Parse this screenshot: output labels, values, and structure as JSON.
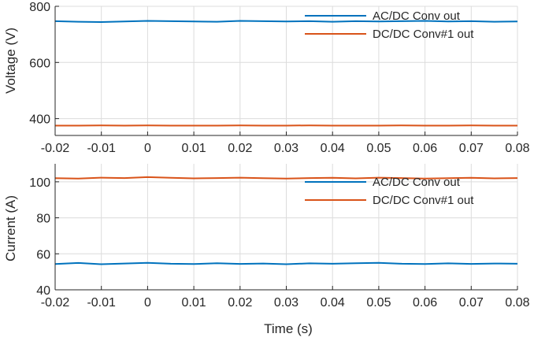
{
  "colors": {
    "series_blue": "#0072BD",
    "series_orange": "#D95319",
    "grid": "#DCDCDC",
    "axis": "#262626",
    "background": "#FFFFFF"
  },
  "chart_data": [
    {
      "type": "line",
      "title": "",
      "xlabel": "",
      "ylabel": "Voltage (V)",
      "xlim": [
        -0.02,
        0.08
      ],
      "ylim": [
        340,
        800
      ],
      "x_ticks": [
        -0.02,
        -0.01,
        0,
        0.01,
        0.02,
        0.03,
        0.04,
        0.05,
        0.06,
        0.07,
        0.08
      ],
      "x_tick_labels": [
        "-0.02",
        "-0.01",
        "0",
        "0.01",
        "0.02",
        "0.03",
        "0.04",
        "0.05",
        "0.06",
        "0.07",
        "0.08"
      ],
      "y_ticks": [
        400,
        600,
        800
      ],
      "y_tick_labels": [
        "400",
        "600",
        "800"
      ],
      "grid": true,
      "legend_position": "top-right",
      "series": [
        {
          "name": "AC/DC Conv out",
          "color": "#0072BD",
          "x": [
            -0.02,
            -0.015,
            -0.01,
            -0.005,
            0,
            0.005,
            0.01,
            0.015,
            0.02,
            0.025,
            0.03,
            0.035,
            0.04,
            0.045,
            0.05,
            0.055,
            0.06,
            0.065,
            0.07,
            0.075,
            0.08
          ],
          "y": [
            747,
            745,
            744,
            746,
            748,
            747,
            746,
            745,
            748,
            747,
            746,
            747,
            745,
            747,
            746,
            747,
            748,
            746,
            747,
            745,
            746
          ]
        },
        {
          "name": "DC/DC Conv#1 out",
          "color": "#D95319",
          "x": [
            -0.02,
            -0.015,
            -0.01,
            -0.005,
            0,
            0.005,
            0.01,
            0.015,
            0.02,
            0.025,
            0.03,
            0.035,
            0.04,
            0.045,
            0.05,
            0.055,
            0.06,
            0.065,
            0.07,
            0.075,
            0.08
          ],
          "y": [
            375,
            375,
            376,
            375,
            376,
            375,
            375,
            375,
            376,
            375,
            375,
            376,
            375,
            375,
            375,
            376,
            375,
            375,
            376,
            375,
            375
          ]
        }
      ]
    },
    {
      "type": "line",
      "title": "",
      "xlabel": "Time (s)",
      "ylabel": "Current (A)",
      "xlim": [
        -0.02,
        0.08
      ],
      "ylim": [
        40,
        110
      ],
      "x_ticks": [
        -0.02,
        -0.01,
        0,
        0.01,
        0.02,
        0.03,
        0.04,
        0.05,
        0.06,
        0.07,
        0.08
      ],
      "x_tick_labels": [
        "-0.02",
        "-0.01",
        "0",
        "0.01",
        "0.02",
        "0.03",
        "0.04",
        "0.05",
        "0.06",
        "0.07",
        "0.08"
      ],
      "y_ticks": [
        40,
        60,
        80,
        100
      ],
      "y_tick_labels": [
        "40",
        "60",
        "80",
        "100"
      ],
      "grid": true,
      "legend_position": "top-right",
      "series": [
        {
          "name": "AC/DC Conv out",
          "color": "#0072BD",
          "x": [
            -0.02,
            -0.015,
            -0.01,
            -0.005,
            0,
            0.005,
            0.01,
            0.015,
            0.02,
            0.025,
            0.03,
            0.035,
            0.04,
            0.045,
            0.05,
            0.055,
            0.06,
            0.065,
            0.07,
            0.075,
            0.08
          ],
          "y": [
            54.3,
            54.9,
            54.2,
            54.6,
            55.0,
            54.5,
            54.3,
            54.8,
            54.4,
            54.6,
            54.2,
            54.7,
            54.5,
            54.8,
            55.0,
            54.5,
            54.3,
            54.7,
            54.4,
            54.6,
            54.5
          ]
        },
        {
          "name": "DC/DC Conv#1 out",
          "color": "#D95319",
          "x": [
            -0.02,
            -0.015,
            -0.01,
            -0.005,
            0,
            0.005,
            0.01,
            0.015,
            0.02,
            0.025,
            0.03,
            0.035,
            0.04,
            0.045,
            0.05,
            0.055,
            0.06,
            0.065,
            0.07,
            0.075,
            0.08
          ],
          "y": [
            102.0,
            101.8,
            102.3,
            102.1,
            102.6,
            102.2,
            101.9,
            102.1,
            102.3,
            102.0,
            101.8,
            102.1,
            102.2,
            101.9,
            102.3,
            102.1,
            101.8,
            102.0,
            102.2,
            101.9,
            102.1
          ]
        }
      ]
    }
  ]
}
